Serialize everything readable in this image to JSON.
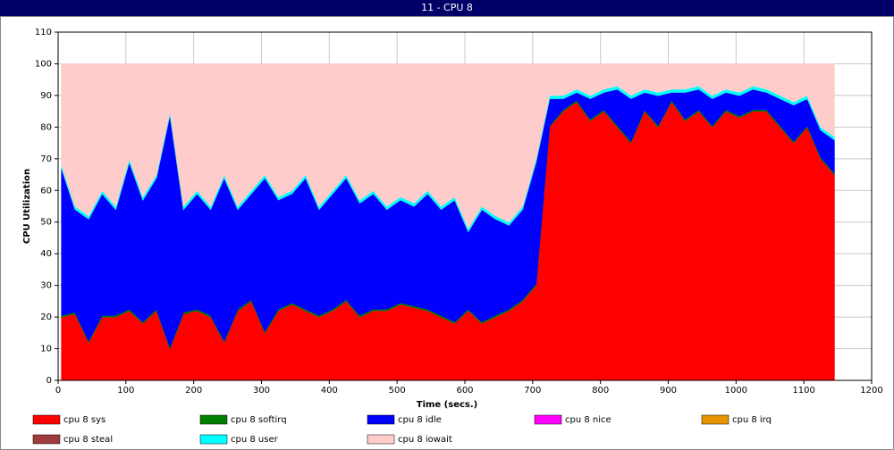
{
  "chart_data": {
    "type": "stacked_area",
    "title": "11 - CPU 8",
    "xlabel": "Time (secs.)",
    "ylabel": "CPU Utilization",
    "x": [
      5,
      25,
      45,
      65,
      85,
      105,
      125,
      145,
      165,
      185,
      205,
      225,
      245,
      265,
      285,
      305,
      325,
      345,
      365,
      385,
      405,
      425,
      445,
      465,
      485,
      505,
      525,
      545,
      565,
      585,
      605,
      625,
      645,
      665,
      685,
      705,
      725,
      745,
      765,
      785,
      805,
      825,
      845,
      865,
      885,
      905,
      925,
      945,
      965,
      985,
      1005,
      1025,
      1045,
      1065,
      1085,
      1105,
      1125,
      1145
    ],
    "xlim": [
      0,
      1200
    ],
    "xticks": [
      0,
      100,
      200,
      300,
      400,
      500,
      600,
      700,
      800,
      900,
      1000,
      1100,
      1200
    ],
    "ylim": [
      0,
      110
    ],
    "yticks": [
      0,
      10,
      20,
      30,
      40,
      50,
      60,
      70,
      80,
      90,
      100,
      110
    ],
    "grid": true,
    "series": [
      {
        "name": "cpu 8 sys",
        "color": "#ff0000",
        "values": [
          20,
          21,
          12,
          20,
          20,
          22,
          18,
          22,
          10,
          21,
          22,
          20,
          12,
          22,
          25,
          15,
          22,
          24,
          22,
          20,
          22,
          25,
          20,
          22,
          22,
          24,
          23,
          22,
          20,
          18,
          22,
          18,
          20,
          22,
          25,
          30,
          80,
          85,
          88,
          82,
          85,
          80,
          75,
          85,
          80,
          88,
          82,
          85,
          80,
          85,
          83,
          85,
          85,
          80,
          75,
          80,
          70,
          65
        ]
      },
      {
        "name": "cpu 8 softirq",
        "color": "#008000",
        "values": [
          0.5,
          0.5,
          0.5,
          0.5,
          0.5,
          0.5,
          0.5,
          0.5,
          0.5,
          0.5,
          0.5,
          0.5,
          0.5,
          0.5,
          0.5,
          0.5,
          0.5,
          0.5,
          0.5,
          0.5,
          0.5,
          0.5,
          0.5,
          0.5,
          0.5,
          0.5,
          0.5,
          0.5,
          0.5,
          0.5,
          0.5,
          0.5,
          0.5,
          0.5,
          0.5,
          0.5,
          0.5,
          0.5,
          0.5,
          0.5,
          0.5,
          0.5,
          0.5,
          0.5,
          0.5,
          0.5,
          0.5,
          0.5,
          0.5,
          0.5,
          0.5,
          0.5,
          0.5,
          0.5,
          0.5,
          0.5,
          0.5,
          0.5
        ]
      },
      {
        "name": "cpu 8 idle",
        "color": "#0000ff",
        "values": [
          46.5,
          32.5,
          38.5,
          38.5,
          33.5,
          46.5,
          38.5,
          41.5,
          73.5,
          32.5,
          36.5,
          33.5,
          51.5,
          31.5,
          33.5,
          48.5,
          34.5,
          34.5,
          41.5,
          33.5,
          36.5,
          38.5,
          35.5,
          36.5,
          31.5,
          32.5,
          31.5,
          36.5,
          33.5,
          38.5,
          24.5,
          35.5,
          30.5,
          26.5,
          28.5,
          38.5,
          8.5,
          3.5,
          2.5,
          6.5,
          5.5,
          11.5,
          13.5,
          5.5,
          9.5,
          2.5,
          8.5,
          6.5,
          8.5,
          5.5,
          6.5,
          6.5,
          5.5,
          8.5,
          11.5,
          8.5,
          8.5,
          10.5
        ]
      },
      {
        "name": "cpu 8 nice",
        "color": "#ff00ff",
        "values": [
          0,
          0,
          0,
          0,
          0,
          0,
          0,
          0,
          0,
          0,
          0,
          0,
          0,
          0,
          0,
          0,
          0,
          0,
          0,
          0,
          0,
          0,
          0,
          0,
          0,
          0,
          0,
          0,
          0,
          0,
          0,
          0,
          0,
          0,
          0,
          0,
          0,
          0,
          0,
          0,
          0,
          0,
          0,
          0,
          0,
          0,
          0,
          0,
          0,
          0,
          0,
          0,
          0,
          0,
          0,
          0,
          0,
          0
        ]
      },
      {
        "name": "cpu 8 irq",
        "color": "#e69500",
        "values": [
          0,
          0,
          0,
          0,
          0,
          0,
          0,
          0,
          0,
          0,
          0,
          0,
          0,
          0,
          0,
          0,
          0,
          0,
          0,
          0,
          0,
          0,
          0,
          0,
          0,
          0,
          0,
          0,
          0,
          0,
          0,
          0,
          0,
          0,
          0,
          0,
          0,
          0,
          0,
          0,
          0,
          0,
          0,
          0,
          0,
          0,
          0,
          0,
          0,
          0,
          0,
          0,
          0,
          0,
          0,
          0,
          0,
          0
        ]
      },
      {
        "name": "cpu 8 steal",
        "color": "#a03c3c",
        "values": [
          0,
          0,
          0,
          0,
          0,
          0,
          0,
          0,
          0,
          0,
          0,
          0,
          0,
          0,
          0,
          0,
          0,
          0,
          0,
          0,
          0,
          0,
          0,
          0,
          0,
          0,
          0,
          0,
          0,
          0,
          0,
          0,
          0,
          0,
          0,
          0,
          0,
          0,
          0,
          0,
          0,
          0,
          0,
          0,
          0,
          0,
          0,
          0,
          0,
          0,
          0,
          0,
          0,
          0,
          0,
          0,
          0,
          0
        ]
      },
      {
        "name": "cpu 8 user",
        "color": "#00ffff",
        "values": [
          1,
          1,
          1,
          1,
          1,
          1,
          1,
          1,
          1,
          1,
          1,
          1,
          1,
          1,
          1,
          1,
          1,
          1,
          1,
          1,
          1,
          1,
          1,
          1,
          1,
          1,
          1,
          1,
          1,
          1,
          1,
          1,
          1,
          1,
          1,
          1,
          1,
          1,
          1,
          1,
          1,
          1,
          1,
          1,
          1,
          1,
          1,
          1,
          1,
          1,
          1,
          1,
          1,
          1,
          1,
          1,
          1,
          1
        ]
      },
      {
        "name": "cpu 8 iowait",
        "color": "#ffcccc",
        "values": [
          32,
          45,
          48,
          40,
          45,
          30,
          42,
          35,
          15,
          45,
          40,
          45,
          35,
          45,
          40,
          35,
          42,
          40,
          35,
          45,
          40,
          35,
          43,
          40,
          45,
          42,
          44,
          40,
          45,
          42,
          52,
          45,
          48,
          50,
          45,
          30,
          10,
          10,
          8,
          10,
          8,
          7,
          10,
          8,
          9,
          8,
          8,
          7,
          10,
          8,
          9,
          7,
          8,
          10,
          12,
          10,
          20,
          23
        ]
      }
    ]
  }
}
